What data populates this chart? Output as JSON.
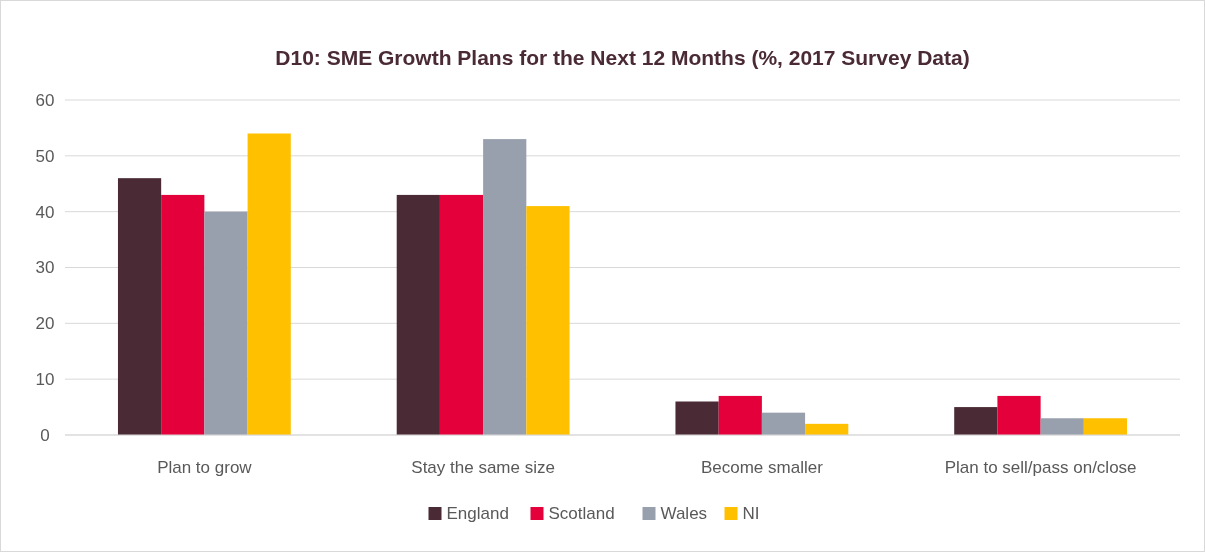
{
  "chart_data": {
    "type": "bar",
    "title": "D10: SME Growth Plans for the Next 12 Months (%, 2017 Survey Data)",
    "categories": [
      "Plan to grow",
      "Stay the same size",
      "Become smaller",
      "Plan to sell/pass on/close"
    ],
    "series": [
      {
        "name": "England",
        "color": "#4a2a35",
        "values": [
          46,
          43,
          6,
          5
        ]
      },
      {
        "name": "Scotland",
        "color": "#e4003b",
        "values": [
          43,
          43,
          7,
          7
        ]
      },
      {
        "name": "Wales",
        "color": "#99a0ad",
        "values": [
          40,
          53,
          4,
          3
        ]
      },
      {
        "name": "NI",
        "color": "#ffc000",
        "values": [
          54,
          41,
          2,
          3
        ]
      }
    ],
    "ylim": [
      0,
      60
    ],
    "yticks": [
      0,
      10,
      20,
      30,
      40,
      50,
      60
    ],
    "grid": "y",
    "legend": "bottom"
  }
}
